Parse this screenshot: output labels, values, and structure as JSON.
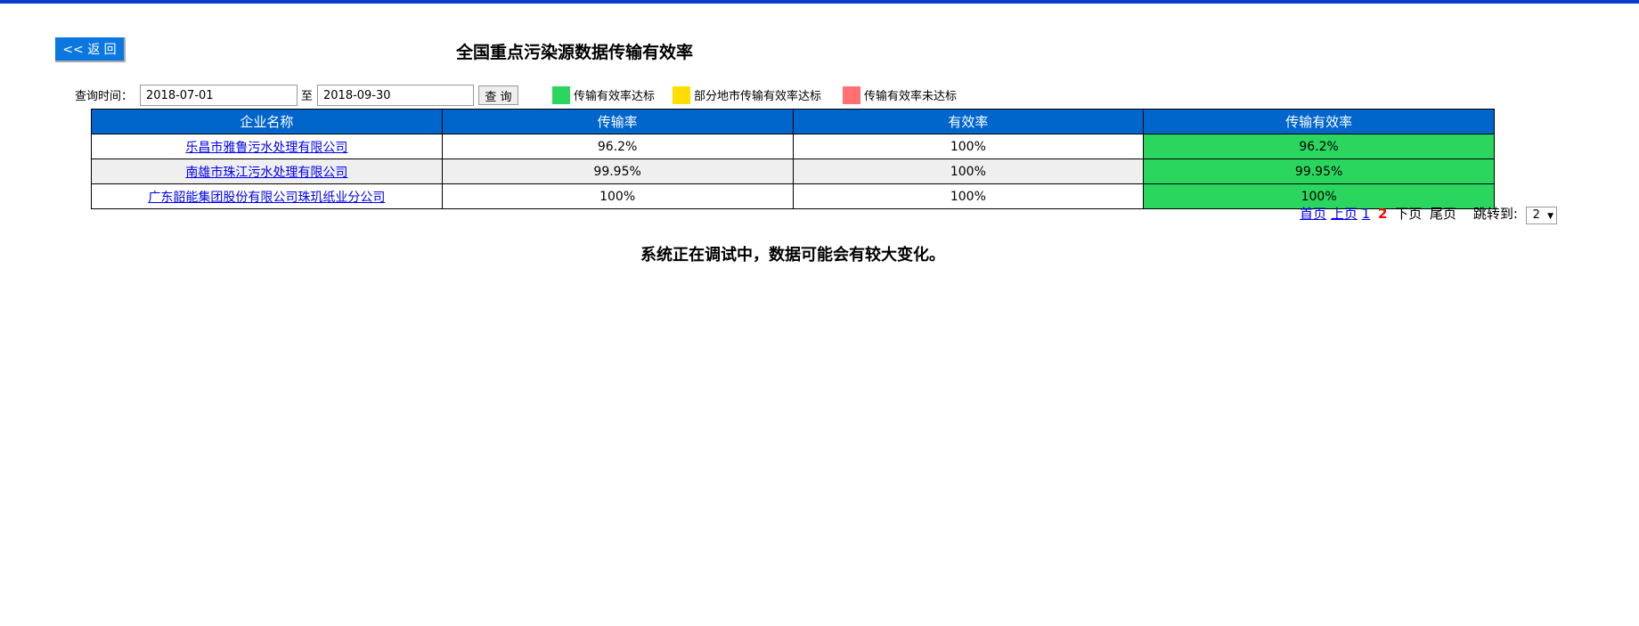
{
  "back_label": "<< 返 回",
  "title": "全国重点污染源数据传输有效率",
  "query": {
    "label": "查询时间：",
    "start": "2018-07-01",
    "to": "至",
    "end": "2018-09-30",
    "button": "查 询"
  },
  "legend": [
    {
      "label": "传输有效率达标",
      "color": "#2bd65e"
    },
    {
      "label": "部分地市传输有效率达标",
      "color": "#ffdd00"
    },
    {
      "label": "传输有效率未达标",
      "color": "#ff7070"
    }
  ],
  "table": {
    "headers": [
      "企业名称",
      "传输率",
      "有效率",
      "传输有效率"
    ],
    "rows": [
      [
        "乐昌市雅鲁污水处理有限公司",
        "96.2%",
        "100%",
        "96.2%"
      ],
      [
        "南雄市珠江污水处理有限公司",
        "99.95%",
        "100%",
        "99.95%"
      ],
      [
        "广东韶能集团股份有限公司珠玑纸业分公司",
        "100%",
        "100%",
        "100%"
      ]
    ]
  },
  "pager": {
    "first": "首页",
    "prev": "上页",
    "pages": [
      "1",
      "2"
    ],
    "current": "2",
    "next": "下页",
    "last": "尾页",
    "jump": "跳转到:",
    "jump_value": "2",
    "dropdown_icon": "▼"
  },
  "notice": "系统正在调试中，数据可能会有较大变化。"
}
